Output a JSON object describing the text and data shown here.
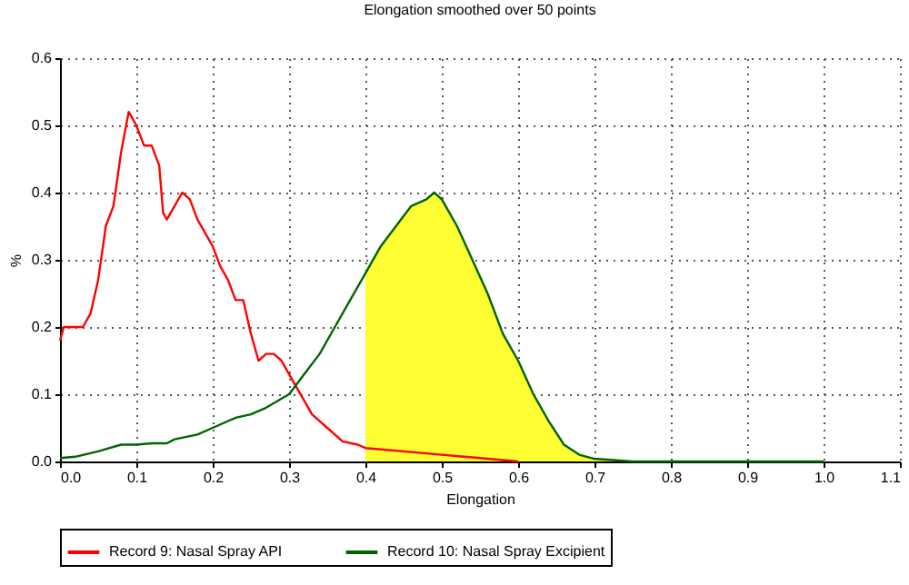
{
  "chart_data": {
    "type": "line",
    "title": "Elongation smoothed over 50 points",
    "xlabel": "Elongation",
    "ylabel": "%",
    "xlim": [
      0,
      1.1
    ],
    "ylim": [
      0,
      0.6
    ],
    "xticks": [
      {
        "value": 0,
        "label": "0.0"
      },
      0.1,
      0.2,
      0.3,
      0.4,
      0.5,
      0.6,
      0.7,
      0.8,
      0.9,
      {
        "value": 1,
        "label": "1.0"
      },
      1.1
    ],
    "yticks": [
      {
        "value": 0,
        "label": "0.0"
      },
      0.1,
      0.2,
      0.3,
      0.4,
      0.5,
      0.6
    ],
    "grid": true,
    "legend": "bottom",
    "line_style": "solid",
    "series": [
      {
        "name": "Record 9: Nasal Spray API",
        "color": "#ff0000",
        "x": [
          0,
          0.005,
          0.03,
          0.04,
          0.05,
          0.06,
          0.07,
          0.08,
          0.085,
          0.09,
          0.1,
          0.11,
          0.12,
          0.13,
          0.135,
          0.14,
          0.15,
          0.16,
          0.17,
          0.18,
          0.19,
          0.2,
          0.21,
          0.22,
          0.23,
          0.24,
          0.25,
          0.26,
          0.27,
          0.28,
          0.29,
          0.3,
          0.31,
          0.32,
          0.33,
          0.34,
          0.35,
          0.36,
          0.37,
          0.39,
          0.4,
          0.45,
          0.5,
          0.55,
          0.6
        ],
        "values": [
          0.18,
          0.2,
          0.2,
          0.22,
          0.27,
          0.35,
          0.38,
          0.46,
          0.49,
          0.52,
          0.5,
          0.47,
          0.47,
          0.44,
          0.37,
          0.36,
          0.38,
          0.4,
          0.39,
          0.36,
          0.34,
          0.32,
          0.29,
          0.27,
          0.24,
          0.24,
          0.19,
          0.15,
          0.16,
          0.16,
          0.15,
          0.13,
          0.11,
          0.09,
          0.07,
          0.06,
          0.05,
          0.04,
          0.03,
          0.025,
          0.02,
          0.015,
          0.01,
          0.005,
          0
        ]
      },
      {
        "name": "Record 10: Nasal Spray Excipient",
        "color": "#006400",
        "x": [
          0,
          0.02,
          0.05,
          0.08,
          0.1,
          0.12,
          0.14,
          0.15,
          0.18,
          0.2,
          0.23,
          0.25,
          0.27,
          0.3,
          0.32,
          0.34,
          0.36,
          0.38,
          0.4,
          0.42,
          0.44,
          0.46,
          0.48,
          0.49,
          0.5,
          0.52,
          0.54,
          0.56,
          0.58,
          0.6,
          0.62,
          0.64,
          0.66,
          0.68,
          0.7,
          0.75,
          1.0
        ],
        "values": [
          0.005,
          0.007,
          0.015,
          0.025,
          0.025,
          0.027,
          0.027,
          0.033,
          0.04,
          0.05,
          0.065,
          0.07,
          0.08,
          0.1,
          0.13,
          0.16,
          0.2,
          0.24,
          0.28,
          0.32,
          0.35,
          0.38,
          0.39,
          0.4,
          0.39,
          0.35,
          0.3,
          0.25,
          0.19,
          0.15,
          0.1,
          0.06,
          0.025,
          0.01,
          0.004,
          0,
          0
        ]
      },
      {
        "type": "area",
        "color": "#ffff33",
        "x": [
          0.4,
          0.42,
          0.44,
          0.46,
          0.48,
          0.49,
          0.5,
          0.52,
          0.54,
          0.56,
          0.58,
          0.6,
          0.62,
          0.64,
          0.66,
          0.68,
          0.7,
          0.75
        ],
        "values": [
          0.28,
          0.32,
          0.35,
          0.38,
          0.39,
          0.4,
          0.39,
          0.35,
          0.3,
          0.25,
          0.19,
          0.15,
          0.1,
          0.06,
          0.025,
          0.01,
          0.004,
          0
        ]
      }
    ]
  }
}
